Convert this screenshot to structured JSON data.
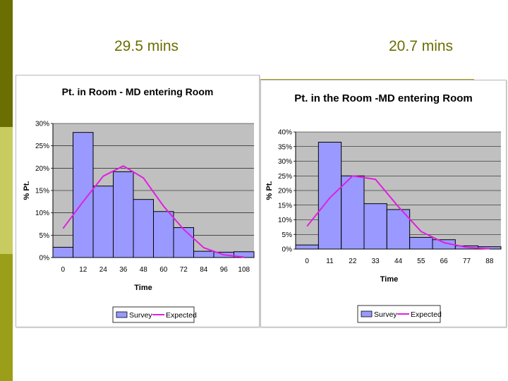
{
  "headings": {
    "left": "29.5 mins",
    "right": "20.7 mins"
  },
  "colors": {
    "side_dark": "#6b6e00",
    "side_light": "#c8cc60",
    "side_mid": "#9a9e18",
    "heading_text": "#6b6e00",
    "bar_fill": "#9999ff",
    "expected_line": "#e020e0",
    "plot_bg": "#c0c0c0"
  },
  "chart_data": [
    {
      "type": "bar",
      "title": "Pt. in Room - MD entering Room",
      "xlabel": "Time",
      "ylabel": "% Pt.",
      "categories": [
        "0",
        "12",
        "24",
        "36",
        "48",
        "60",
        "72",
        "84",
        "96",
        "108"
      ],
      "y_ticks": [
        "0%",
        "5%",
        "10%",
        "15%",
        "20%",
        "25%",
        "30%"
      ],
      "ylim": [
        0,
        30
      ],
      "grid": true,
      "legend_position": "bottom",
      "series": [
        {
          "name": "Survey",
          "type": "bar",
          "values": [
            2.3,
            28,
            16,
            19.2,
            13,
            10.3,
            6.7,
            1.4,
            1.2,
            1.3
          ]
        },
        {
          "name": "Expected",
          "type": "line",
          "values": [
            6.5,
            12.5,
            18.2,
            20.5,
            17.8,
            11.5,
            6.3,
            2.2,
            0.6,
            0.1
          ]
        }
      ]
    },
    {
      "type": "bar",
      "title": "Pt. in the Room -MD entering Room",
      "xlabel": "Time",
      "ylabel": "% Pt.",
      "categories": [
        "0",
        "11",
        "22",
        "33",
        "44",
        "55",
        "66",
        "77",
        "88"
      ],
      "y_ticks": [
        "0%",
        "5%",
        "10%",
        "15%",
        "20%",
        "25%",
        "30%",
        "35%",
        "40%"
      ],
      "ylim": [
        0,
        40
      ],
      "grid": true,
      "legend_position": "bottom",
      "series": [
        {
          "name": "Survey",
          "type": "bar",
          "values": [
            1.4,
            36.5,
            25,
            15.5,
            13.5,
            4,
            3.2,
            1.1,
            0.8
          ]
        },
        {
          "name": "Expected",
          "type": "line",
          "values": [
            7.8,
            17.5,
            25,
            23.8,
            14.5,
            6,
            2.2,
            0.6,
            0.1
          ]
        }
      ]
    }
  ]
}
